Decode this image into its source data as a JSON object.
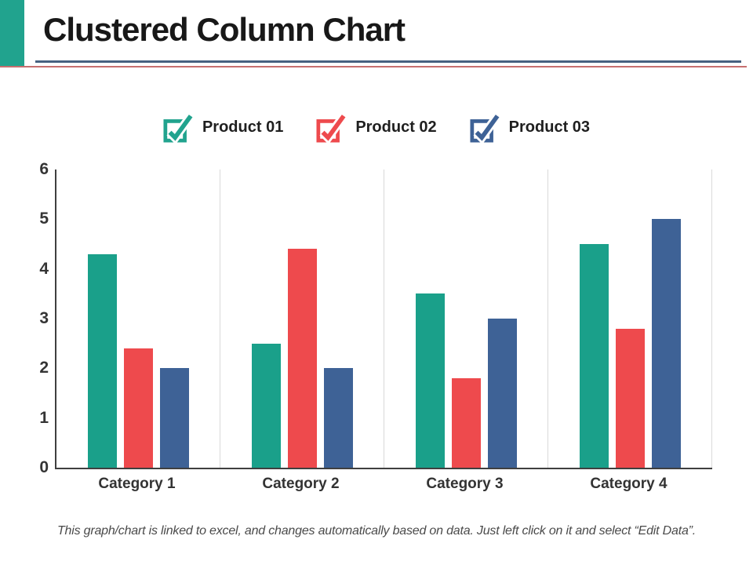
{
  "slide": {
    "title": "Clustered Column Chart",
    "footer": "This graph/chart is linked to excel, and changes automatically based on data. Just left click on it and select “Edit Data”."
  },
  "colors": {
    "teal": "#1AA08A",
    "red": "#EE4A4D",
    "blue": "#3E6296",
    "corner_accent": "#21A38E",
    "header_rule_blue": "#476180",
    "header_rule_red": "#C76F6F",
    "axis": "#3F3F3F",
    "gridline": "#D9D9D9"
  },
  "legend": {
    "items": [
      {
        "label": "Product 01",
        "color": "#21A38E",
        "icon": "checkbox-checked-icon"
      },
      {
        "label": "Product 02",
        "color": "#EE4A4D",
        "icon": "checkbox-checked-icon"
      },
      {
        "label": "Product 03",
        "color": "#3E6296",
        "icon": "checkbox-checked-icon"
      }
    ]
  },
  "chart_data": {
    "type": "bar",
    "title": "Clustered Column Chart",
    "categories": [
      "Category 1",
      "Category 2",
      "Category 3",
      "Category 4"
    ],
    "series": [
      {
        "name": "Product 01",
        "color": "#1AA08A",
        "values": [
          4.3,
          2.5,
          3.5,
          4.5
        ]
      },
      {
        "name": "Product 02",
        "color": "#EE4A4D",
        "values": [
          2.4,
          4.4,
          1.8,
          2.8
        ]
      },
      {
        "name": "Product 03",
        "color": "#3E6296",
        "values": [
          2.0,
          2.0,
          3.0,
          5.0
        ]
      }
    ],
    "xlabel": "",
    "ylabel": "",
    "ylim": [
      0,
      6
    ],
    "y_ticks": [
      6,
      5,
      4,
      3,
      2,
      1,
      0
    ],
    "grid": "vertical-panel-separators-only",
    "legend_position": "top"
  }
}
